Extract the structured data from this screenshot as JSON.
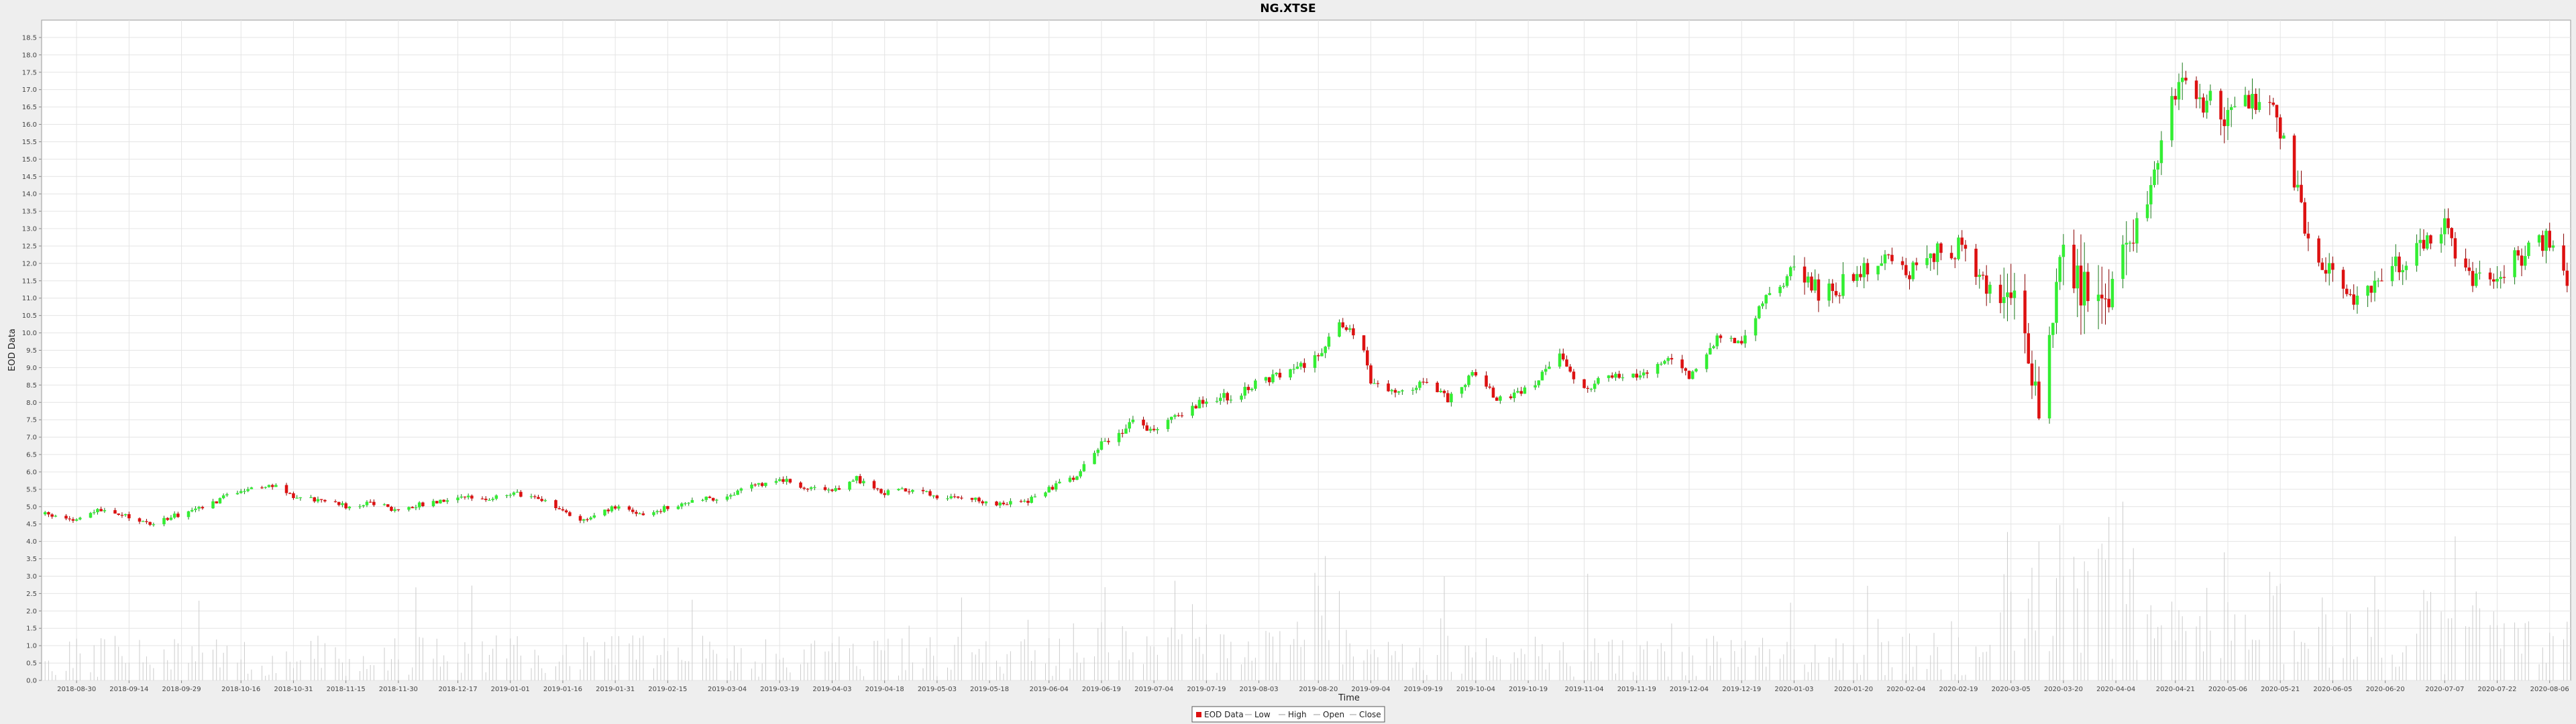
{
  "chart_data": {
    "type": "candlestick",
    "title": "NG.XTSE",
    "xlabel": "Time",
    "ylabel": "EOD Data",
    "ylim": [
      0.0,
      19.0
    ],
    "y_ticks": [
      "0.0",
      "0.5",
      "1.0",
      "1.5",
      "2.0",
      "2.5",
      "3.0",
      "3.5",
      "4.0",
      "4.5",
      "5.0",
      "5.5",
      "6.0",
      "6.5",
      "7.0",
      "7.5",
      "8.0",
      "8.5",
      "9.0",
      "9.5",
      "10.0",
      "10.5",
      "11.0",
      "11.5",
      "12.0",
      "12.5",
      "13.0",
      "13.5",
      "14.0",
      "14.5",
      "15.0",
      "15.5",
      "16.0",
      "16.5",
      "17.0",
      "17.5",
      "18.0",
      "18.5"
    ],
    "x_ticks": [
      "2018-08-30",
      "2018-09-14",
      "2018-09-29",
      "2018-10-16",
      "2018-10-31",
      "2018-11-15",
      "2018-11-30",
      "2018-12-17",
      "2019-01-01",
      "2019-01-16",
      "2019-01-31",
      "2019-02-15",
      "2019-03-04",
      "2019-03-19",
      "2019-04-03",
      "2019-04-18",
      "2019-05-03",
      "2019-05-18",
      "2019-06-04",
      "2019-06-19",
      "2019-07-04",
      "2019-07-19",
      "2019-08-03",
      "2019-08-20",
      "2019-09-04",
      "2019-09-19",
      "2019-10-04",
      "2019-10-19",
      "2019-11-04",
      "2019-11-19",
      "2019-12-04",
      "2019-12-19",
      "2020-01-03",
      "2020-01-20",
      "2020-02-04",
      "2020-02-19",
      "2020-03-05",
      "2020-03-20",
      "2020-04-04",
      "2020-04-21",
      "2020-05-06",
      "2020-05-21",
      "2020-06-05",
      "2020-06-20",
      "2020-07-07",
      "2020-07-22",
      "2020-08-06"
    ],
    "x_range": [
      "2018-08-20",
      "2020-08-12"
    ],
    "price_path": [
      [
        "2018-08-20",
        4.8
      ],
      [
        "2018-08-30",
        4.6
      ],
      [
        "2018-09-05",
        4.9
      ],
      [
        "2018-09-14",
        4.7
      ],
      [
        "2018-09-20",
        4.5
      ],
      [
        "2018-09-29",
        4.8
      ],
      [
        "2018-10-08",
        5.1
      ],
      [
        "2018-10-16",
        5.5
      ],
      [
        "2018-10-25",
        5.6
      ],
      [
        "2018-10-31",
        5.3
      ],
      [
        "2018-11-08",
        5.2
      ],
      [
        "2018-11-15",
        5.0
      ],
      [
        "2018-11-22",
        5.1
      ],
      [
        "2018-11-30",
        4.9
      ],
      [
        "2018-12-08",
        5.1
      ],
      [
        "2018-12-17",
        5.3
      ],
      [
        "2018-12-25",
        5.2
      ],
      [
        "2019-01-01",
        5.4
      ],
      [
        "2019-01-10",
        5.2
      ],
      [
        "2019-01-16",
        4.9
      ],
      [
        "2019-01-22",
        4.6
      ],
      [
        "2019-01-31",
        5.0
      ],
      [
        "2019-02-08",
        4.7
      ],
      [
        "2019-02-15",
        5.0
      ],
      [
        "2019-02-25",
        5.2
      ],
      [
        "2019-03-04",
        5.3
      ],
      [
        "2019-03-12",
        5.6
      ],
      [
        "2019-03-19",
        5.8
      ],
      [
        "2019-03-28",
        5.5
      ],
      [
        "2019-04-03",
        5.4
      ],
      [
        "2019-04-10",
        5.8
      ],
      [
        "2019-04-18",
        5.4
      ],
      [
        "2019-04-25",
        5.5
      ],
      [
        "2019-05-03",
        5.3
      ],
      [
        "2019-05-10",
        5.3
      ],
      [
        "2019-05-18",
        5.1
      ],
      [
        "2019-05-28",
        5.1
      ],
      [
        "2019-06-04",
        5.5
      ],
      [
        "2019-06-12",
        5.9
      ],
      [
        "2019-06-19",
        6.8
      ],
      [
        "2019-06-28",
        7.4
      ],
      [
        "2019-07-04",
        7.2
      ],
      [
        "2019-07-12",
        7.7
      ],
      [
        "2019-07-19",
        8.1
      ],
      [
        "2019-07-28",
        8.2
      ],
      [
        "2019-08-03",
        8.6
      ],
      [
        "2019-08-12",
        8.9
      ],
      [
        "2019-08-20",
        9.3
      ],
      [
        "2019-08-26",
        10.3
      ],
      [
        "2019-09-01",
        9.8
      ],
      [
        "2019-09-04",
        8.6
      ],
      [
        "2019-09-12",
        8.3
      ],
      [
        "2019-09-19",
        8.6
      ],
      [
        "2019-09-26",
        8.1
      ],
      [
        "2019-10-04",
        8.9
      ],
      [
        "2019-10-10",
        8.1
      ],
      [
        "2019-10-19",
        8.4
      ],
      [
        "2019-10-28",
        9.3
      ],
      [
        "2019-11-04",
        8.4
      ],
      [
        "2019-11-12",
        8.8
      ],
      [
        "2019-11-19",
        8.8
      ],
      [
        "2019-11-28",
        9.2
      ],
      [
        "2019-12-04",
        8.8
      ],
      [
        "2019-12-12",
        9.8
      ],
      [
        "2019-12-19",
        9.8
      ],
      [
        "2019-12-26",
        11.0
      ],
      [
        "2020-01-03",
        11.8
      ],
      [
        "2020-01-10",
        11.2
      ],
      [
        "2020-01-20",
        11.5
      ],
      [
        "2020-01-27",
        12.0
      ],
      [
        "2020-02-04",
        11.8
      ],
      [
        "2020-02-12",
        12.2
      ],
      [
        "2020-02-19",
        12.5
      ],
      [
        "2020-02-26",
        11.4
      ],
      [
        "2020-03-05",
        11.2
      ],
      [
        "2020-03-10",
        9.5
      ],
      [
        "2020-03-13",
        7.5
      ],
      [
        "2020-03-17",
        10.5
      ],
      [
        "2020-03-20",
        12.2
      ],
      [
        "2020-03-27",
        11.0
      ],
      [
        "2020-04-04",
        11.5
      ],
      [
        "2020-04-12",
        13.5
      ],
      [
        "2020-04-21",
        17.0
      ],
      [
        "2020-04-28",
        16.8
      ],
      [
        "2020-05-06",
        16.2
      ],
      [
        "2020-05-14",
        16.6
      ],
      [
        "2020-05-21",
        16.0
      ],
      [
        "2020-05-28",
        13.2
      ],
      [
        "2020-06-05",
        11.5
      ],
      [
        "2020-06-12",
        11.0
      ],
      [
        "2020-06-20",
        11.8
      ],
      [
        "2020-06-28",
        12.2
      ],
      [
        "2020-07-07",
        13.0
      ],
      [
        "2020-07-14",
        11.6
      ],
      [
        "2020-07-22",
        11.8
      ],
      [
        "2020-07-30",
        12.2
      ],
      [
        "2020-08-06",
        12.8
      ],
      [
        "2020-08-12",
        11.3
      ]
    ],
    "volume_scale_max": 6.5,
    "legend": [
      "EOD Data",
      "Low",
      "High",
      "Open",
      "Close"
    ],
    "legend_placement": "bottom-center",
    "colors": {
      "up": "#33ee33",
      "down": "#dd1111",
      "wick_up": "#1a7a1a",
      "wick_down": "#880000",
      "volume": "#cccccc",
      "grid": "#e4e4e4",
      "plot_bg": "#ffffff",
      "page_bg": "#eeeeee"
    },
    "grid": true
  }
}
